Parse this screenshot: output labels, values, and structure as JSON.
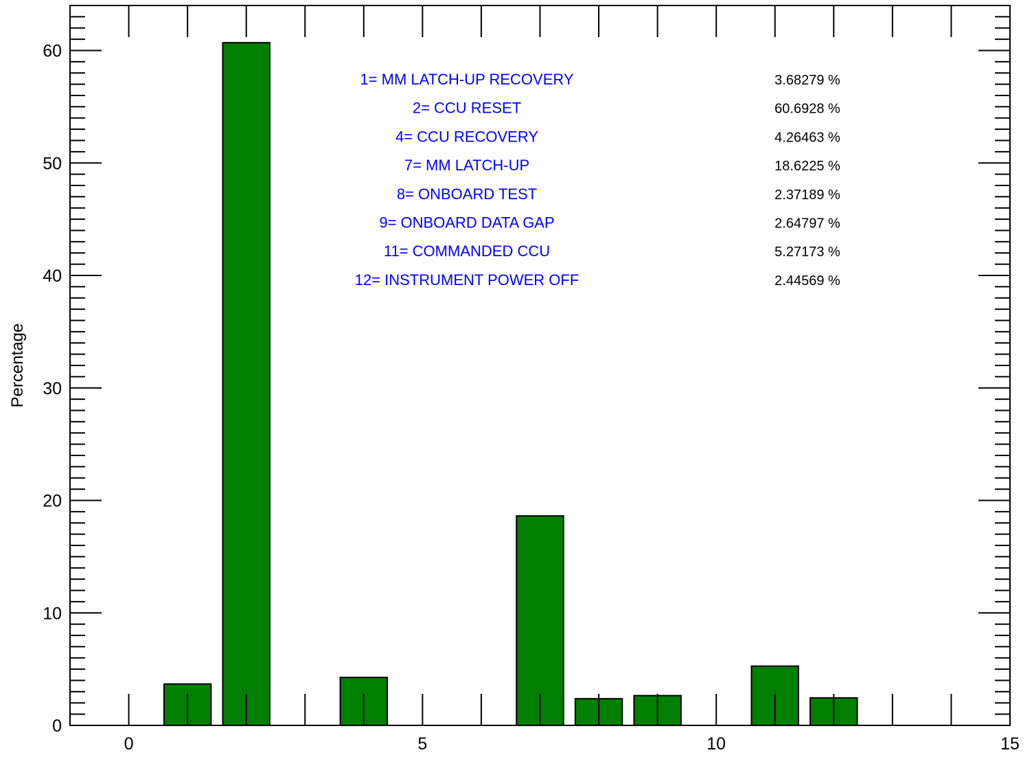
{
  "chart_data": {
    "type": "bar",
    "title": "",
    "xlabel": "",
    "ylabel": "Percentage",
    "xlim": [
      -1,
      15
    ],
    "ylim": [
      0,
      64
    ],
    "grid": false,
    "bar_color": "#007f00",
    "legend_color": "#0000ff",
    "x": [
      0,
      1,
      2,
      3,
      4,
      5,
      6,
      7,
      8,
      9,
      10,
      11,
      12,
      13,
      14
    ],
    "values": [
      0,
      3.68279,
      60.6928,
      0,
      4.26463,
      0,
      0,
      18.6225,
      2.37189,
      2.64797,
      0,
      5.27173,
      2.44569,
      0,
      0
    ],
    "x_ticks": [
      0,
      5,
      10,
      15
    ],
    "y_ticks": [
      0,
      10,
      20,
      30,
      40,
      50,
      60
    ],
    "annotations": [
      {
        "label": "1= MM LATCH-UP RECOVERY",
        "value": "3.68279 %"
      },
      {
        "label": "2= CCU RESET",
        "value": "60.6928 %"
      },
      {
        "label": "4= CCU RECOVERY",
        "value": "4.26463 %"
      },
      {
        "label": "7= MM LATCH-UP",
        "value": "18.6225 %"
      },
      {
        "label": "8= ONBOARD TEST",
        "value": "2.37189 %"
      },
      {
        "label": "9= ONBOARD DATA GAP",
        "value": "2.64797 %"
      },
      {
        "label": "11= COMMANDED CCU",
        "value": "5.27173 %"
      },
      {
        "label": "12= INSTRUMENT POWER OFF",
        "value": "2.44569 %"
      }
    ]
  }
}
